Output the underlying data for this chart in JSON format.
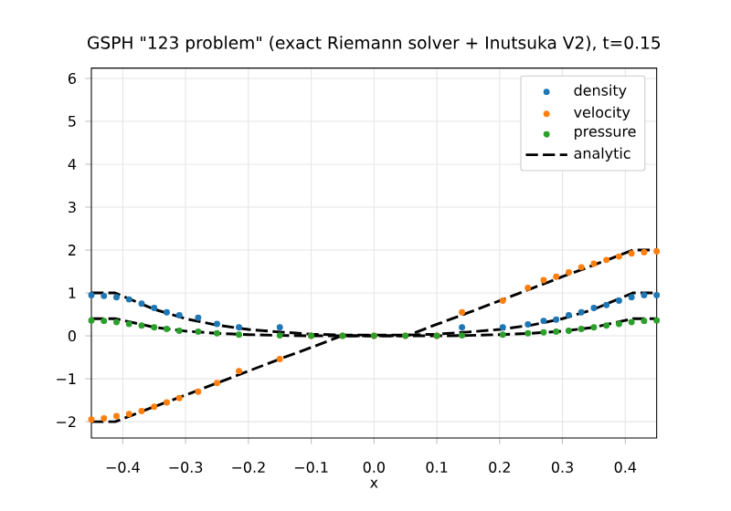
{
  "chart_data": {
    "type": "scatter",
    "title": "GSPH \"123 problem\" (exact Riemann solver + Inutsuka V2), t=0.15",
    "xlabel": "x",
    "xlim": [
      -0.45,
      0.45
    ],
    "ylim": [
      -2.38,
      6.24
    ],
    "xticks": [
      {
        "value": -0.4,
        "label": "−0.4"
      },
      {
        "value": -0.3,
        "label": "−0.3"
      },
      {
        "value": -0.2,
        "label": "−0.2"
      },
      {
        "value": -0.1,
        "label": "−0.1"
      },
      {
        "value": 0,
        "label": "0.0"
      },
      0.1,
      0.2,
      0.3,
      0.4
    ],
    "yticks": [
      {
        "value": -2,
        "label": "−2"
      },
      {
        "value": -1,
        "label": "−1"
      },
      0,
      1,
      2,
      3,
      4,
      5,
      6
    ],
    "grid": true,
    "legend": "top right",
    "series": [
      {
        "name": "density",
        "marker": "circle",
        "color": "#1f77b4",
        "x": [
          -0.45,
          -0.43,
          -0.41,
          -0.39,
          -0.37,
          -0.35,
          -0.33,
          -0.31,
          -0.28,
          -0.25,
          -0.215,
          -0.15,
          -0.1,
          -0.05,
          0.0,
          0.05,
          0.1,
          0.14,
          0.205,
          0.245,
          0.27,
          0.29,
          0.31,
          0.33,
          0.35,
          0.37,
          0.39,
          0.41,
          0.43,
          0.45
        ],
        "values": [
          0.95,
          0.93,
          0.9,
          0.85,
          0.75,
          0.65,
          0.55,
          0.48,
          0.42,
          0.28,
          0.2,
          0.2,
          null,
          null,
          null,
          null,
          null,
          0.2,
          0.2,
          0.27,
          0.35,
          0.38,
          0.48,
          0.55,
          0.65,
          0.72,
          0.82,
          0.9,
          0.95,
          0.95
        ]
      },
      {
        "name": "velocity",
        "marker": "circle",
        "color": "#ff7f0e",
        "x": [
          -0.45,
          -0.43,
          -0.41,
          -0.39,
          -0.37,
          -0.35,
          -0.33,
          -0.31,
          -0.28,
          -0.25,
          -0.215,
          -0.15,
          -0.1,
          -0.05,
          0.0,
          0.05,
          0.1,
          0.14,
          0.205,
          0.245,
          0.27,
          0.29,
          0.31,
          0.33,
          0.35,
          0.37,
          0.39,
          0.41,
          0.43,
          0.45
        ],
        "values": [
          -1.95,
          -1.92,
          -1.87,
          -1.82,
          -1.75,
          -1.65,
          -1.55,
          -1.45,
          -1.3,
          -1.1,
          -0.82,
          -0.54,
          0.0,
          0.0,
          0.0,
          0.0,
          0.0,
          0.55,
          0.82,
          1.12,
          1.3,
          1.38,
          1.48,
          1.6,
          1.68,
          1.77,
          1.85,
          1.92,
          1.95,
          1.97
        ]
      },
      {
        "name": "pressure",
        "marker": "circle",
        "color": "#2ca02c",
        "x": [
          -0.45,
          -0.43,
          -0.41,
          -0.39,
          -0.37,
          -0.35,
          -0.33,
          -0.31,
          -0.28,
          -0.25,
          -0.215,
          -0.15,
          -0.1,
          -0.05,
          0.0,
          0.05,
          0.1,
          0.14,
          0.205,
          0.245,
          0.27,
          0.29,
          0.31,
          0.33,
          0.35,
          0.37,
          0.39,
          0.41,
          0.43,
          0.45
        ],
        "values": [
          0.36,
          0.35,
          0.32,
          0.28,
          0.24,
          0.2,
          0.16,
          0.12,
          0.1,
          0.06,
          0.03,
          0.01,
          0.0,
          0.0,
          0.0,
          0.0,
          0.0,
          0.01,
          0.03,
          0.06,
          0.08,
          0.1,
          0.12,
          0.16,
          0.2,
          0.24,
          0.28,
          0.32,
          0.35,
          0.36
        ]
      },
      {
        "name": "analytic",
        "type": "line",
        "line_style": "dashed",
        "marker": "none",
        "color": "#000000",
        "x": [
          -0.45,
          -0.412,
          -0.35,
          -0.3,
          -0.25,
          -0.2,
          -0.15,
          -0.1,
          -0.052,
          0.052,
          0.1,
          0.15,
          0.2,
          0.25,
          0.3,
          0.35,
          0.412,
          0.45
        ],
        "values": [
          1.0,
          1.0,
          0.62,
          0.4,
          0.25,
          0.15,
          0.09,
          0.04,
          0.02,
          0.02,
          0.04,
          0.09,
          0.15,
          0.25,
          0.4,
          0.62,
          1.0,
          1.0
        ]
      },
      {
        "type": "line",
        "line_style": "dashed",
        "marker": "none",
        "color": "#000000",
        "x": [
          -0.45,
          -0.412,
          -0.35,
          -0.3,
          -0.25,
          -0.2,
          -0.15,
          -0.1,
          -0.052,
          0.052,
          0.1,
          0.15,
          0.2,
          0.25,
          0.3,
          0.35,
          0.412,
          0.45
        ],
        "values": [
          -2.0,
          -2.0,
          -1.65,
          -1.38,
          -1.1,
          -0.82,
          -0.54,
          -0.27,
          0.0,
          0.0,
          0.27,
          0.54,
          0.82,
          1.1,
          1.38,
          1.65,
          2.0,
          2.0
        ]
      },
      {
        "type": "line",
        "line_style": "dashed",
        "marker": "none",
        "color": "#000000",
        "x": [
          -0.45,
          -0.412,
          -0.35,
          -0.3,
          -0.25,
          -0.2,
          -0.15,
          -0.1,
          -0.052,
          0.052,
          0.1,
          0.15,
          0.2,
          0.25,
          0.3,
          0.35,
          0.412,
          0.45
        ],
        "values": [
          0.4,
          0.4,
          0.2,
          0.11,
          0.06,
          0.03,
          0.01,
          0.0,
          0.0,
          0.0,
          0.0,
          0.01,
          0.03,
          0.06,
          0.11,
          0.2,
          0.4,
          0.4
        ]
      }
    ]
  }
}
